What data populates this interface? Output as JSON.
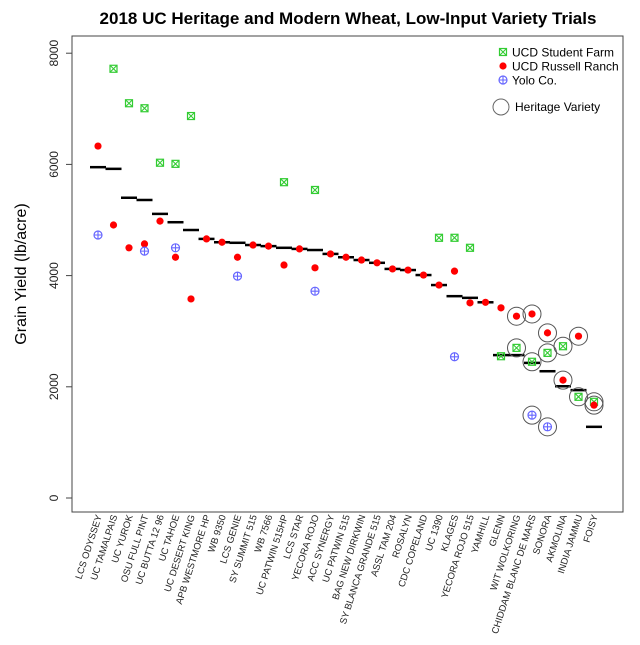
{
  "chart_data": {
    "type": "scatter",
    "title": "2018 UC Heritage and Modern Wheat, Low-Input Variety Trials",
    "xlabel": "",
    "ylabel": "Grain Yield (lb/acre)",
    "ylim": [
      -250,
      8300
    ],
    "yticks": [
      0,
      2000,
      4000,
      6000,
      8000
    ],
    "grid": false,
    "legend_position": "top-right",
    "categories": [
      "LCS ODYSSEY",
      "UC TAMALPAIS",
      "UC YUROK",
      "OSU FULL PINT",
      "UC BUTTA 12 96",
      "UC TAHOE",
      "UC DESERT KING",
      "APB WESTMORE  HP",
      "WB 9350",
      "LCS GENIE",
      "SY SUMMIT 515",
      "WB 7566",
      "UC PATWIN 515HP",
      "LCS STAR",
      "YECORA ROJO",
      "ACC SYNERGY",
      "UC PATWIN 515",
      "BAG NEW DIRKWIN",
      "SY BLANCA GRANDE 515",
      "ASSL TAM 204",
      "ROSALYN",
      "CDC COPELAND",
      "UC 1390",
      "KLAGES",
      "YECORA ROJO 515",
      "YAMHILL",
      "GLENN",
      "WIT WOLKORING",
      "CHIDDAM BLANC DE MARS",
      "SONORA",
      "AKMOLINA",
      "INDIA JAMMU",
      "FOISY"
    ],
    "mean": [
      5950,
      5920,
      5400,
      5360,
      5110,
      4960,
      4820,
      4660,
      4600,
      4590,
      4550,
      4530,
      4500,
      4480,
      4460,
      4390,
      4330,
      4280,
      4230,
      4120,
      4100,
      4010,
      3830,
      3630,
      3600,
      3520,
      2570,
      2570,
      2430,
      2280,
      2010,
      1940,
      1280
    ],
    "series": [
      {
        "name": "UCD Student Farm",
        "marker": "box-x",
        "color": "#33cc33",
        "values": [
          null,
          7720,
          7100,
          7010,
          6030,
          6010,
          6870,
          null,
          null,
          null,
          null,
          null,
          5680,
          null,
          5540,
          null,
          null,
          null,
          null,
          null,
          null,
          null,
          4680,
          4680,
          4500,
          null,
          2550,
          2700,
          2450,
          2610,
          2730,
          1820,
          1730
        ]
      },
      {
        "name": "UCD Russell Ranch",
        "marker": "dot",
        "color": "#ff0000",
        "values": [
          6330,
          4910,
          4500,
          4570,
          4980,
          4330,
          3580,
          4660,
          4600,
          4330,
          4550,
          4530,
          4190,
          4480,
          4140,
          4390,
          4330,
          4280,
          4230,
          4120,
          4100,
          4010,
          3830,
          4080,
          3510,
          3520,
          3420,
          3270,
          3310,
          2970,
          2120,
          2910,
          1670
        ]
      },
      {
        "name": "Yolo Co.",
        "marker": "circle-plus",
        "color": "#6666ff",
        "values": [
          4730,
          null,
          null,
          4440,
          null,
          4500,
          null,
          null,
          null,
          3990,
          null,
          null,
          null,
          null,
          3720,
          null,
          null,
          null,
          null,
          null,
          null,
          null,
          null,
          2540,
          null,
          null,
          null,
          null,
          1490,
          1280,
          null,
          null,
          null
        ]
      }
    ],
    "heritage_label": "Heritage Variety",
    "heritage": [
      "WIT WOLKORING",
      "CHIDDAM BLANC DE MARS",
      "SONORA",
      "AKMOLINA",
      "INDIA JAMMU",
      "FOISY"
    ]
  }
}
